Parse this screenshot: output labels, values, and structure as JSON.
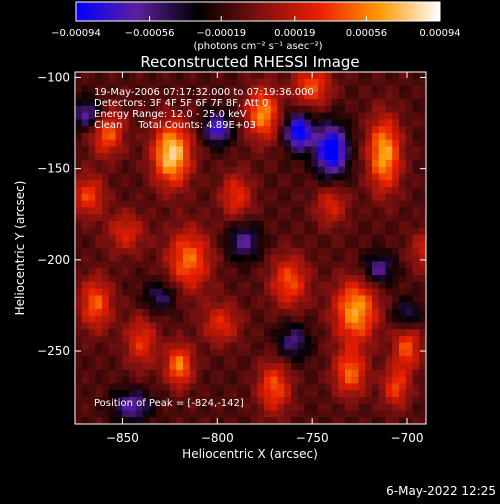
{
  "chart_data": {
    "type": "heatmap",
    "title": "Reconstructed RHESSI Image",
    "xlabel": "Heliocentric X (arcsec)",
    "ylabel": "Heliocentric Y (arcsec)",
    "xlim": [
      -875,
      -690
    ],
    "ylim": [
      -290,
      -97
    ],
    "xticks": [
      -850,
      -800,
      -750,
      -700
    ],
    "xtick_labels": [
      "−850",
      "−800",
      "−750",
      "−700"
    ],
    "yticks": [
      -100,
      -150,
      -200,
      -250
    ],
    "yticks_labels": [
      "−100",
      "−150",
      "−200",
      "−250"
    ],
    "colorbar": {
      "min": -0.00094,
      "max": 0.00094,
      "ticks": [
        -0.00094,
        -0.00056,
        -0.00019,
        0.00019,
        0.00056,
        0.00094
      ],
      "tick_labels": [
        "−0.00094",
        "−0.00056",
        "−0.00019",
        "0.00019",
        "0.00056",
        "0.00094"
      ],
      "unit_label": "(photons cm⁻² s⁻¹ asec⁻²)",
      "stops": [
        "#0000ff",
        "#5d1fa0",
        "#000000",
        "#7a1010",
        "#e81e00",
        "#ff9800",
        "#ffffff"
      ]
    },
    "annotations": [
      "19-May-2006 07:17:32.000 to 07:19:36.000",
      "Detectors: 3F 4F 5F 6F 7F 8F, Att 0",
      "Energy Range: 12.0 - 25.0 keV",
      "Clean     Total Counts: 4.89E+03"
    ],
    "peak_label": "Position of Peak = [-824,-142]",
    "peaks": [
      {
        "x": -824,
        "y": -142,
        "v": 0.00094,
        "sx": 7,
        "sy": 12
      },
      {
        "x": -712,
        "y": -142,
        "v": 0.0008,
        "sx": 6,
        "sy": 14
      },
      {
        "x": -776,
        "y": -120,
        "v": 0.00072,
        "sx": 6,
        "sy": 10
      },
      {
        "x": -858,
        "y": -130,
        "v": 0.0006,
        "sx": 6,
        "sy": 9
      },
      {
        "x": -868,
        "y": -165,
        "v": 0.0005,
        "sx": 6,
        "sy": 8
      },
      {
        "x": -750,
        "y": -105,
        "v": 0.00055,
        "sx": 7,
        "sy": 8
      },
      {
        "x": -815,
        "y": -200,
        "v": 0.00062,
        "sx": 8,
        "sy": 12
      },
      {
        "x": -727,
        "y": -228,
        "v": 0.00078,
        "sx": 8,
        "sy": 12
      },
      {
        "x": -762,
        "y": -212,
        "v": 0.00055,
        "sx": 7,
        "sy": 10
      },
      {
        "x": -864,
        "y": -224,
        "v": 0.00058,
        "sx": 6,
        "sy": 10
      },
      {
        "x": -840,
        "y": -245,
        "v": 0.00045,
        "sx": 6,
        "sy": 10
      },
      {
        "x": -820,
        "y": -258,
        "v": 0.00068,
        "sx": 5,
        "sy": 8
      },
      {
        "x": -798,
        "y": -235,
        "v": 0.00042,
        "sx": 7,
        "sy": 8
      },
      {
        "x": -770,
        "y": -270,
        "v": 0.00056,
        "sx": 6,
        "sy": 10
      },
      {
        "x": -730,
        "y": -262,
        "v": 0.0006,
        "sx": 6,
        "sy": 9
      },
      {
        "x": -700,
        "y": -248,
        "v": 0.00055,
        "sx": 5,
        "sy": 9
      },
      {
        "x": -706,
        "y": -270,
        "v": 0.0005,
        "sx": 5,
        "sy": 8
      },
      {
        "x": -848,
        "y": -185,
        "v": 0.0004,
        "sx": 7,
        "sy": 8
      },
      {
        "x": -790,
        "y": -165,
        "v": 0.00045,
        "sx": 6,
        "sy": 9
      },
      {
        "x": -740,
        "y": -170,
        "v": 0.0004,
        "sx": 6,
        "sy": 8
      },
      {
        "x": -690,
        "y": -195,
        "v": 0.00035,
        "sx": 6,
        "sy": 8
      },
      {
        "x": -740,
        "y": -140,
        "v": -0.00095,
        "sx": 6,
        "sy": 10
      },
      {
        "x": -757,
        "y": -130,
        "v": -0.0009,
        "sx": 5,
        "sy": 7
      },
      {
        "x": -800,
        "y": -128,
        "v": -0.0007,
        "sx": 5,
        "sy": 6
      },
      {
        "x": -868,
        "y": -120,
        "v": -0.00055,
        "sx": 6,
        "sy": 6
      },
      {
        "x": -845,
        "y": -280,
        "v": -0.00055,
        "sx": 7,
        "sy": 6
      },
      {
        "x": -786,
        "y": -190,
        "v": -0.0005,
        "sx": 6,
        "sy": 7
      },
      {
        "x": -715,
        "y": -205,
        "v": -0.0005,
        "sx": 6,
        "sy": 6
      },
      {
        "x": -830,
        "y": -220,
        "v": -0.0004,
        "sx": 6,
        "sy": 6
      },
      {
        "x": -760,
        "y": -245,
        "v": -0.00045,
        "sx": 6,
        "sy": 7
      },
      {
        "x": -700,
        "y": -230,
        "v": -0.0004,
        "sx": 5,
        "sy": 6
      }
    ]
  },
  "footer": {
    "timestamp": "6-May-2022 12:25"
  }
}
